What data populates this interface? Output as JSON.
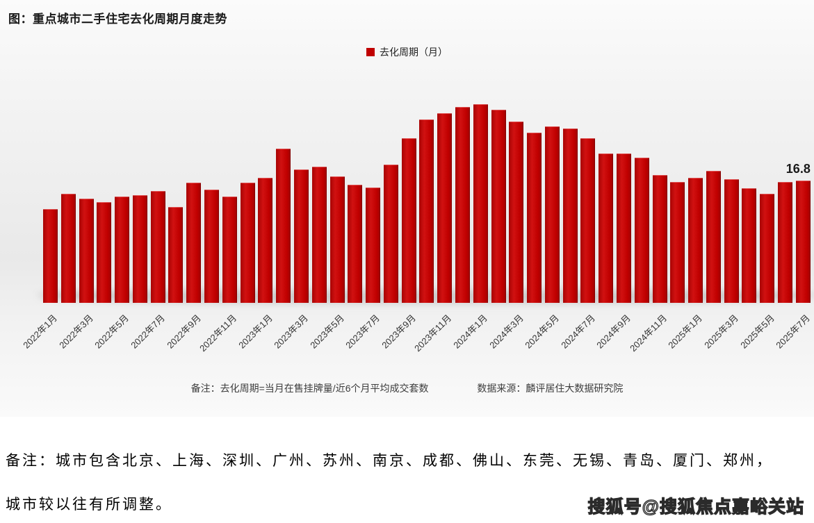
{
  "header": {
    "title": "图：重点城市二手住宅去化周期月度走势"
  },
  "legend": {
    "label": "去化周期（月）",
    "color": "#c00000"
  },
  "chart_data": {
    "type": "bar",
    "title": "重点城市二手住宅去化周期月度走势",
    "series_name": "去化周期（月）",
    "bar_color": "#c00000",
    "ylim": [
      0,
      33
    ],
    "grid": false,
    "legend_position": "top-center",
    "x_tick_step": 2,
    "last_value_label": "16.8",
    "x": [
      "2022年1月",
      "2022年2月",
      "2022年3月",
      "2022年4月",
      "2022年5月",
      "2022年6月",
      "2022年7月",
      "2022年8月",
      "2022年9月",
      "2022年10月",
      "2022年11月",
      "2022年12月",
      "2023年1月",
      "2023年2月",
      "2023年3月",
      "2023年4月",
      "2023年5月",
      "2023年6月",
      "2023年7月",
      "2023年8月",
      "2023年9月",
      "2023年10月",
      "2023年11月",
      "2023年12月",
      "2024年1月",
      "2024年2月",
      "2024年3月",
      "2024年4月",
      "2024年5月",
      "2024年6月",
      "2024年7月",
      "2024年8月",
      "2024年9月",
      "2024年10月",
      "2024年11月",
      "2024年12月",
      "2025年1月",
      "2025年2月",
      "2025年3月",
      "2025年4月",
      "2025年5月",
      "2025年6月",
      "2025年7月"
    ],
    "values": [
      12.9,
      15.0,
      14.3,
      13.9,
      14.6,
      14.8,
      15.4,
      13.2,
      16.5,
      15.6,
      14.6,
      16.5,
      17.2,
      21.2,
      18.4,
      18.7,
      17.4,
      16.3,
      15.9,
      19.0,
      22.7,
      25.2,
      26.1,
      27.0,
      27.3,
      26.6,
      25.0,
      23.4,
      24.3,
      24.0,
      22.7,
      20.6,
      20.6,
      20.0,
      17.6,
      16.6,
      17.2,
      18.2,
      17.0,
      15.8,
      15.0,
      16.6,
      16.8
    ]
  },
  "footnote": {
    "note": "备注：去化周期=当月在售挂牌量/近6个月平均成交套数",
    "source": "数据来源：麟评居住大数据研究院"
  },
  "bottom_note": {
    "line1": "备注：城市包含北京、上海、深圳、广州、苏州、南京、成都、佛山、东莞、无锡、青岛、厦门、郑州，",
    "line2": "城市较以往有所调整。"
  },
  "watermark": {
    "text": "搜狐号@搜狐焦点嘉峪关站"
  }
}
